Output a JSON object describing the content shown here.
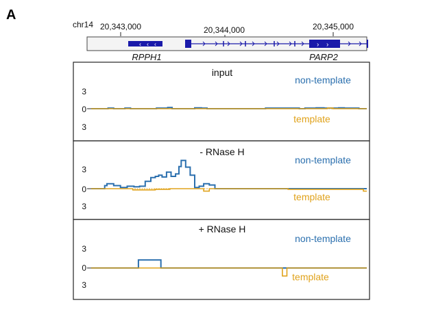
{
  "panel_letter": "A",
  "genome_track": {
    "chromosome": "chr14",
    "coordinates": [
      "20,343,000",
      "20,344,000",
      "20,345,000"
    ],
    "genes": [
      "RPPH1",
      "PARP2"
    ]
  },
  "strand_labels": {
    "top": "non-template",
    "bottom": "template"
  },
  "colors": {
    "non_template": "#2a6fae",
    "template": "#e0a21a",
    "gene": "#1a1aaa",
    "frame": "#222222"
  },
  "chart_data": [
    {
      "type": "area",
      "title": "input",
      "y_ticks": [
        "3",
        "0",
        "3"
      ],
      "ylim": [
        -3,
        3
      ],
      "xlim": [
        20342800,
        20345250
      ],
      "series": [
        {
          "name": "non-template",
          "x": [
            20342800,
            20342950,
            20343000,
            20343100,
            20343150,
            20343350,
            20343380,
            20343480,
            20343520,
            20343650,
            20343720,
            20343780,
            20343830,
            20344200,
            20344350,
            20344650,
            20344700,
            20344800,
            20344870,
            20345000,
            20345050,
            20345180,
            20345250
          ],
          "values": [
            0,
            0.1,
            0,
            0.1,
            0,
            0,
            0.1,
            0.2,
            0,
            0,
            0.15,
            0.1,
            0,
            0,
            0.1,
            0,
            0.1,
            0.15,
            0.1,
            0.15,
            0.1,
            0,
            0
          ]
        },
        {
          "name": "template",
          "x": [
            20342800,
            20344800,
            20344900,
            20344950,
            20345250
          ],
          "values": [
            0,
            0,
            0.1,
            0,
            0
          ]
        }
      ]
    },
    {
      "type": "area",
      "title": "- RNase H",
      "y_ticks": [
        "3",
        "0",
        "3"
      ],
      "ylim": [
        -3,
        3
      ],
      "xlim": [
        20342800,
        20345250
      ],
      "series": [
        {
          "name": "non-template",
          "x": [
            20342800,
            20342920,
            20342940,
            20343000,
            20343060,
            20343120,
            20343180,
            20343230,
            20343280,
            20343330,
            20343370,
            20343400,
            20343430,
            20343470,
            20343510,
            20343550,
            20343580,
            20343600,
            20343640,
            20343680,
            20343720,
            20343760,
            20343800,
            20343850,
            20343900,
            20344500,
            20344550,
            20345250
          ],
          "values": [
            0,
            0.5,
            0.8,
            0.5,
            0.2,
            0.4,
            0.3,
            0.4,
            1.2,
            1.8,
            2.0,
            2.2,
            1.9,
            2.7,
            2.0,
            2.4,
            3.6,
            4.6,
            3.5,
            2.2,
            0.2,
            0.4,
            0.8,
            0.6,
            0,
            0,
            0,
            0
          ]
        },
        {
          "name": "template",
          "x": [
            20342800,
            20343170,
            20343370,
            20343500,
            20343800,
            20343850,
            20344500,
            20344550,
            20345220,
            20345250
          ],
          "values": [
            0,
            -0.2,
            -0.1,
            0,
            -0.4,
            0,
            0,
            -0.1,
            -0.4,
            -0.4
          ]
        }
      ]
    },
    {
      "type": "area",
      "title": "+ RNase H",
      "y_ticks": [
        "3",
        "0",
        "3"
      ],
      "ylim": [
        -3,
        3
      ],
      "xlim": [
        20342800,
        20345250
      ],
      "series": [
        {
          "name": "non-template",
          "x": [
            20342800,
            20343220,
            20343420,
            20345250
          ],
          "values": [
            0,
            1.3,
            0,
            0
          ]
        },
        {
          "name": "template",
          "x": [
            20342800,
            20344500,
            20344540,
            20345250
          ],
          "values": [
            0,
            -1.3,
            0,
            0
          ]
        }
      ]
    }
  ]
}
